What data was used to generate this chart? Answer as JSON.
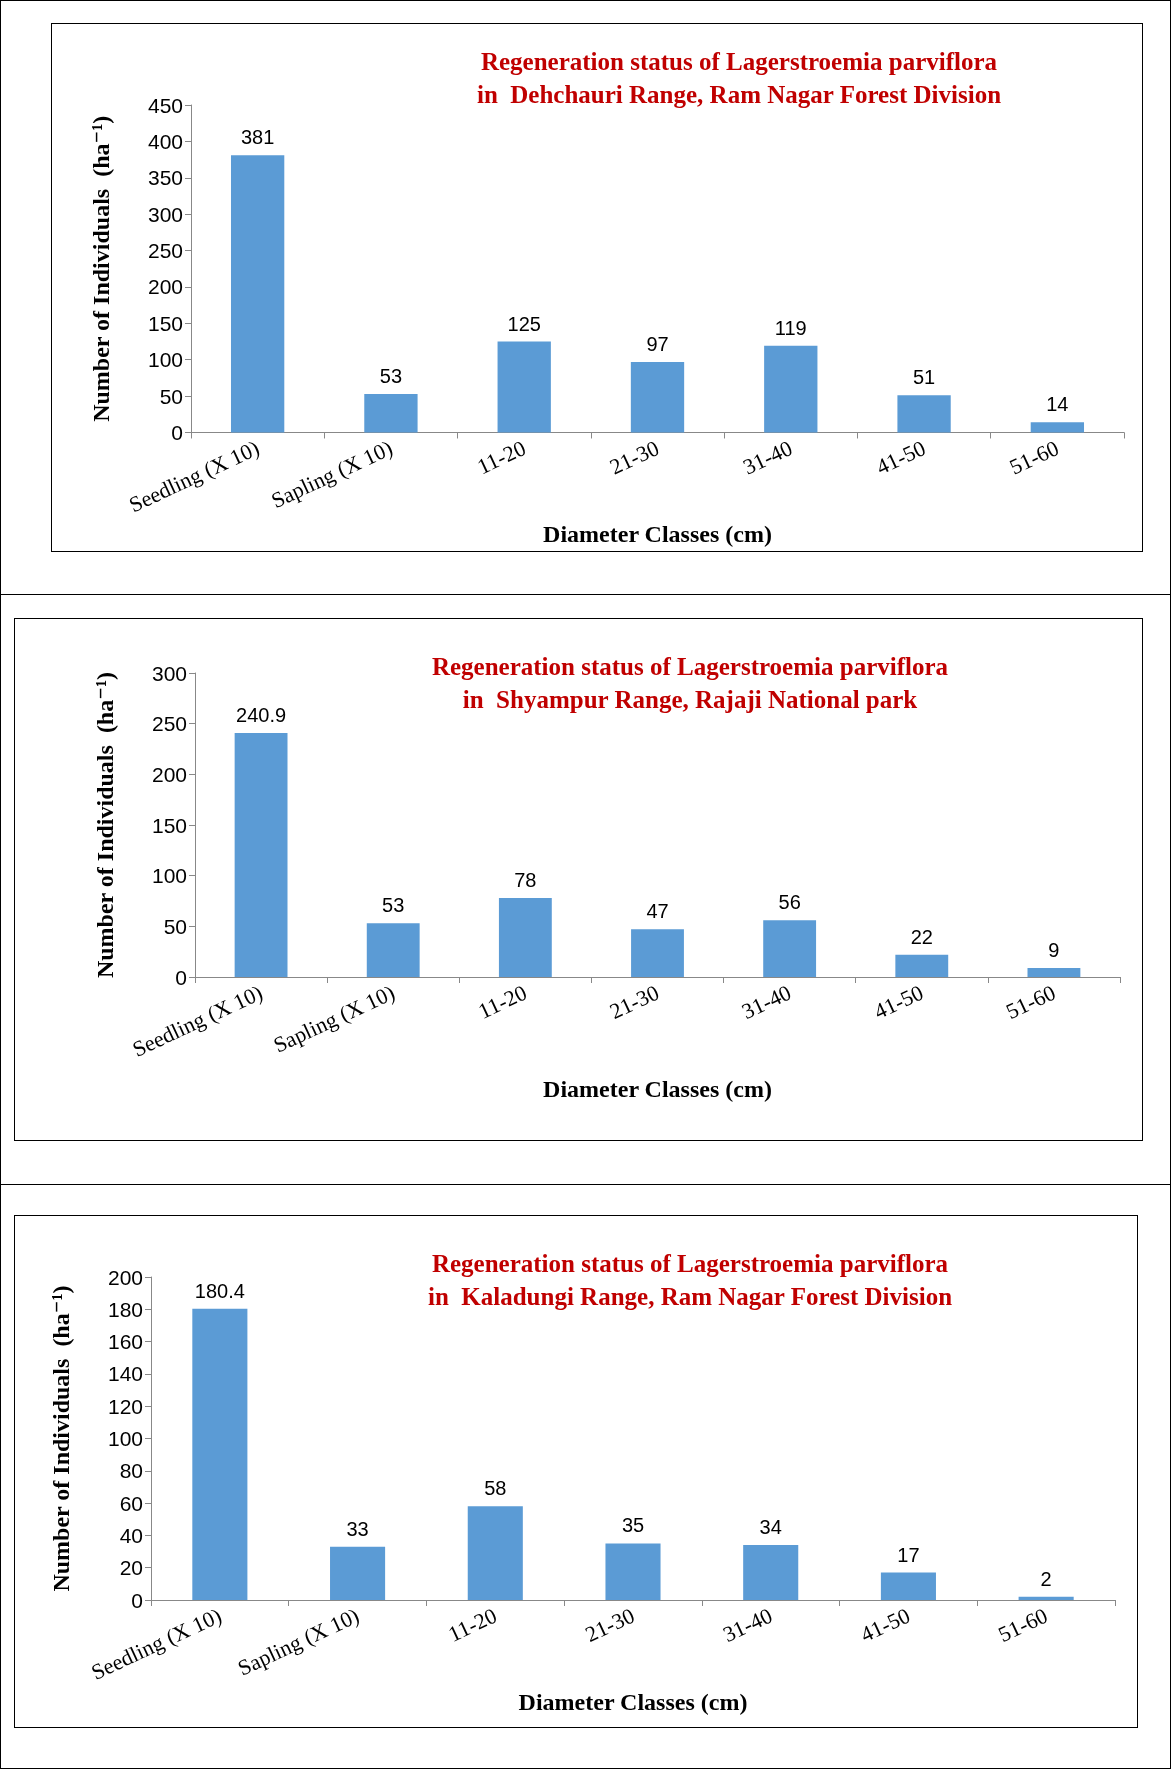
{
  "chart_data": [
    {
      "type": "bar",
      "title": "Regeneration status of Lagerstroemia parviflora",
      "subtitle": "in  Dehchauri Range, Ram Nagar Forest Division",
      "xlabel": "Diameter Classes (cm)",
      "ylabel": "Number of Individuals  (ha⁻¹)",
      "categories": [
        "Seedling (X 10)",
        "Sapling (X 10)",
        "11-20",
        "21-30",
        "31-40",
        "41-50",
        "51-60"
      ],
      "values": [
        381,
        53,
        125,
        97,
        119,
        51,
        14
      ],
      "color": "#5b9bd5",
      "ylim": [
        0,
        450
      ],
      "yticks": [
        0,
        50,
        100,
        150,
        200,
        250,
        300,
        350,
        400,
        450
      ],
      "data_labels": true,
      "grid": false
    },
    {
      "type": "bar",
      "title": "Regeneration status of Lagerstroemia parviflora",
      "subtitle": "in  Shyampur Range, Rajaji National park",
      "xlabel": "Diameter Classes (cm)",
      "ylabel": "Number of Individuals  (ha⁻¹)",
      "categories": [
        "Seedling (X 10)",
        "Sapling (X 10)",
        "11-20",
        "21-30",
        "31-40",
        "41-50",
        "51-60"
      ],
      "values": [
        240.9,
        53,
        78,
        47,
        56,
        22,
        9
      ],
      "color": "#5b9bd5",
      "ylim": [
        0,
        300
      ],
      "yticks": [
        0,
        50,
        100,
        150,
        200,
        250,
        300
      ],
      "data_labels": true,
      "grid": false
    },
    {
      "type": "bar",
      "title": "Regeneration status of Lagerstroemia parviflora",
      "subtitle": "in  Kaladungi Range, Ram Nagar Forest Division",
      "xlabel": "Diameter Classes (cm)",
      "ylabel": "Number of Individuals  (ha⁻¹)",
      "categories": [
        "Seedling (X 10)",
        "Sapling (X 10)",
        "11-20",
        "21-30",
        "31-40",
        "41-50",
        "51-60"
      ],
      "values": [
        180.4,
        33,
        58,
        35,
        34,
        17,
        2
      ],
      "color": "#5b9bd5",
      "ylim": [
        0,
        200
      ],
      "yticks": [
        0,
        20,
        40,
        60,
        80,
        100,
        120,
        140,
        160,
        180,
        200
      ],
      "data_labels": true,
      "grid": false
    }
  ]
}
